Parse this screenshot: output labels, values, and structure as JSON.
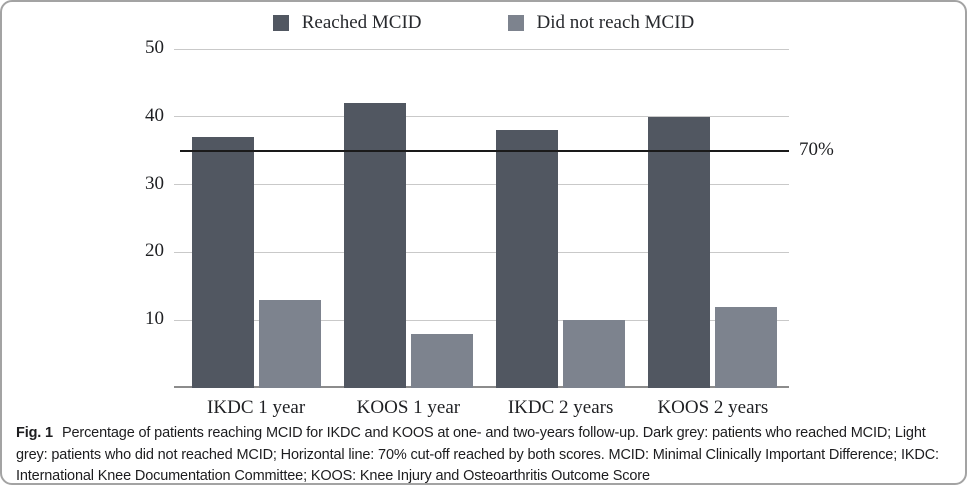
{
  "chart_data": {
    "type": "bar",
    "categories": [
      "IKDC 1 year",
      "KOOS 1 year",
      "IKDC 2 years",
      "KOOS 2 years"
    ],
    "series": [
      {
        "name": "Reached MCID",
        "color": "#515761",
        "values": [
          37,
          42,
          38,
          40
        ]
      },
      {
        "name": "Did not reach MCID",
        "color": "#7d838e",
        "values": [
          13,
          8,
          10,
          12
        ]
      }
    ],
    "title": "",
    "xlabel": "",
    "ylabel": "",
    "ylim": [
      0,
      50
    ],
    "y_ticks": [
      10,
      20,
      30,
      40,
      50
    ],
    "grid": true,
    "legend_position": "top",
    "cutoff_line": {
      "value": 35,
      "label": "70%"
    }
  },
  "colors": {
    "gridline": "#c9c9c9",
    "baseline": "#8c8c8c",
    "cutoff": "#1a1a1a",
    "frame_border": "#a3a3a3",
    "dark_series": "#515761",
    "light_series": "#7d838e"
  },
  "caption": {
    "label": "Fig. 1",
    "text": "Percentage of patients reaching MCID for IKDC and KOOS at one- and two-years follow-up. Dark grey: patients who reached MCID; Light grey: patients who did not reached MCID; Horizontal line: 70% cut-off reached by both scores. MCID: Minimal Clinically Important Difference; IKDC: International Knee Documentation Committee; KOOS: Knee Injury and Osteoarthritis Outcome Score"
  }
}
